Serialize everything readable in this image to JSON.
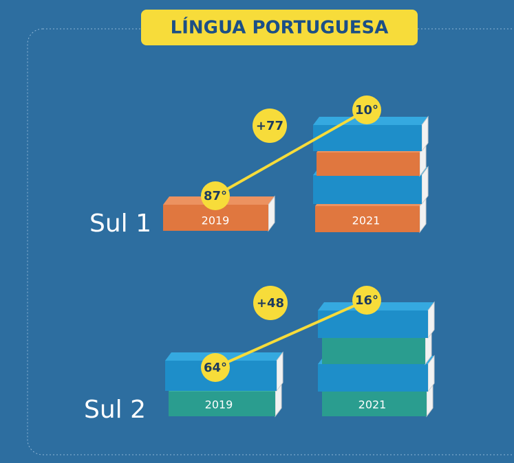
{
  "title": "LÍNGUA PORTUGUESA",
  "groups": [
    {
      "label": "Sul 1",
      "change": "+77",
      "books": [
        {
          "year": "2019",
          "rank": "87°"
        },
        {
          "year": "2021",
          "rank": "10°"
        }
      ]
    },
    {
      "label": "Sul 2",
      "change": "+48",
      "books": [
        {
          "year": "2019",
          "rank": "64°"
        },
        {
          "year": "2021",
          "rank": "16°"
        }
      ]
    }
  ]
}
